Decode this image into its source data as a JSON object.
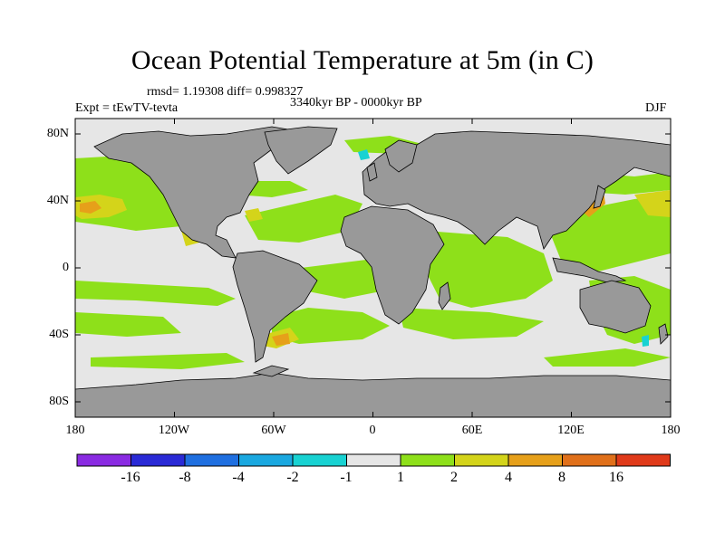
{
  "title": "Ocean Potential Temperature at 5m (in C)",
  "stats": "rmsd= 1.19308 diff= 0.998327",
  "experiment": "Expt = tEwTV-tevta",
  "period": "3340kyr BP - 0000kyr BP",
  "season": "DJF",
  "lat_labels": [
    "80N",
    "40N",
    "0",
    "40S",
    "80S"
  ],
  "lon_labels": [
    "180",
    "120W",
    "60W",
    "0",
    "60E",
    "120E",
    "180"
  ],
  "colorbar": {
    "labels": [
      "-16",
      "-8",
      "-4",
      "-2",
      "-1",
      "1",
      "2",
      "4",
      "8",
      "16"
    ],
    "colors": [
      "#8a2be2",
      "#2a2ad6",
      "#1f6fe0",
      "#1aa8e0",
      "#18d2d2",
      "#e6e6e6",
      "#8ee01a",
      "#d4d41a",
      "#e6a01a",
      "#e0701a",
      "#e03a1a"
    ]
  },
  "map_colors": {
    "ocean": "#e6e6e6",
    "land": "#999999",
    "warm1": "#8ee01a",
    "warm2": "#d4d41a",
    "warm3": "#e6a01a",
    "cool": "#18d2d2"
  }
}
